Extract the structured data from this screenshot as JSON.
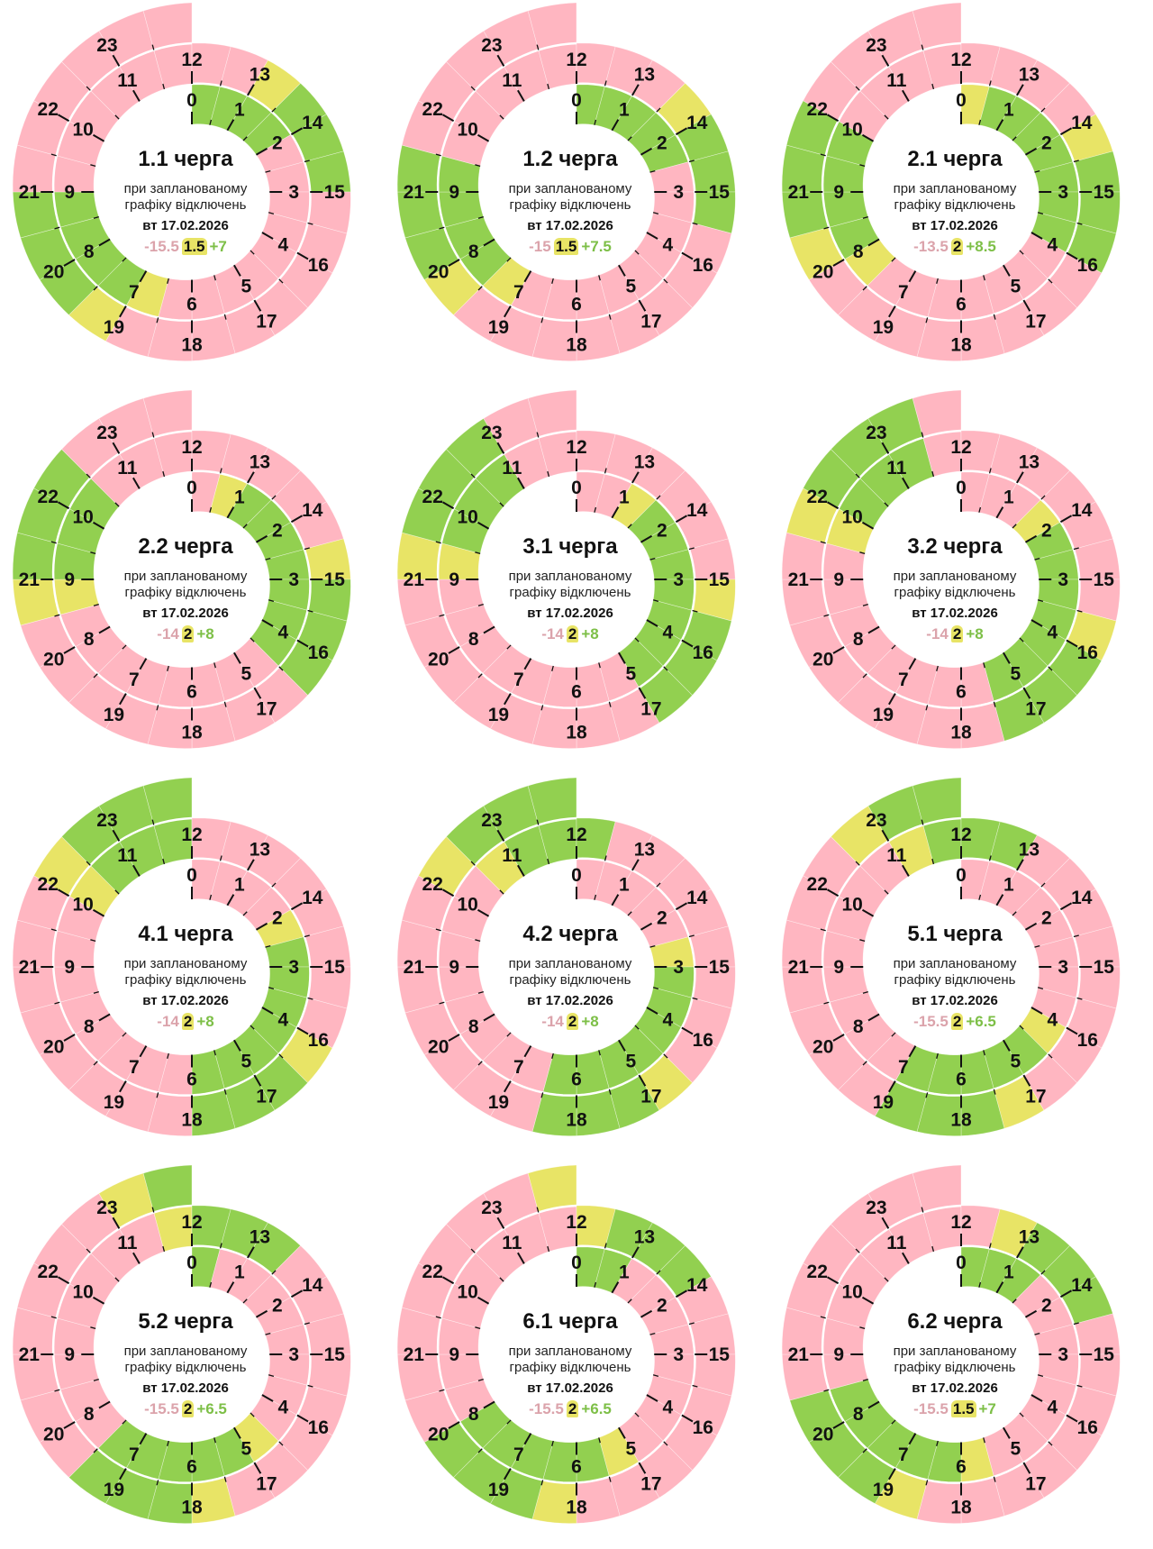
{
  "colors": {
    "p": "#ffb6c1",
    "g": "#92d050",
    "y": "#e8e466",
    "stat_off": "#dba3ab",
    "stat_on": "#7dbf47"
  },
  "hour_labels": [
    "0",
    "1",
    "2",
    "3",
    "4",
    "5",
    "6",
    "7",
    "8",
    "9",
    "10",
    "11",
    "12",
    "13",
    "14",
    "15",
    "16",
    "17",
    "18",
    "19",
    "20",
    "21",
    "22",
    "23"
  ],
  "charts": [
    {
      "title": "1.1 черга",
      "subtitle_1": "при запланованому",
      "subtitle_2": "графіку відключень",
      "date": "вт 17.02.2026",
      "off_hours": "-15.5",
      "maybe_hours": "1.5",
      "on_hours": "+7",
      "schedule": {
        "inner": "ggggpppppppppyggggpppppp",
        "outer": "ppygggppppppppygggpppppp"
      }
    },
    {
      "title": "1.2 черга",
      "subtitle_1": "при запланованому",
      "subtitle_2": "графіку відключень",
      "date": "вт 17.02.2026",
      "off_hours": "-15",
      "maybe_hours": "1.5",
      "on_hours": "+7.5",
      "schedule": {
        "inner": "gggggpppppppppyggggppppp",
        "outer": "pppygggppppppppygggppppp"
      }
    },
    {
      "title": "2.1 черга",
      "subtitle_1": "при запланованому",
      "subtitle_2": "графіку відключень",
      "date": "вт 17.02.2026",
      "off_hours": "-13.5",
      "maybe_hours": "2",
      "on_hours": "+8.5",
      "schedule": {
        "inner": "ygggggggpppppppyggggpppp",
        "outer": "ppppygggppppppppygggpppp"
      }
    },
    {
      "title": "2.2 черга",
      "subtitle_1": "при запланованому",
      "subtitle_2": "графіку відключень",
      "date": "вт 17.02.2026",
      "off_hours": "-14",
      "maybe_hours": "2",
      "on_hours": "+8",
      "schedule": {
        "inner": "pygggggggppppppppygggppp",
        "outer": "pppppygggppppppppygggppp"
      }
    },
    {
      "title": "3.1 черга",
      "subtitle_1": "при запланованому",
      "subtitle_2": "графіку відключень",
      "date": "вт 17.02.2026",
      "off_hours": "-14",
      "maybe_hours": "2",
      "on_hours": "+8",
      "schedule": {
        "inner": "ppygggggggppppppppygggpp",
        "outer": "ppppppygggppppppppygggpp"
      }
    },
    {
      "title": "3.2 черга",
      "subtitle_1": "при запланованому",
      "subtitle_2": "графіку відключень",
      "date": "вт 17.02.2026",
      "off_hours": "-14",
      "maybe_hours": "2",
      "on_hours": "+8",
      "schedule": {
        "inner": "pppygggggggppppppppygggp",
        "outer": "pppppppygggppppppppygggp"
      }
    },
    {
      "title": "4.1 черга",
      "subtitle_1": "при запланованому",
      "subtitle_2": "графіку відключень",
      "date": "вт 17.02.2026",
      "off_hours": "-14",
      "maybe_hours": "2",
      "on_hours": "+8",
      "schedule": {
        "inner": "ppppygggggggppppppppyggg",
        "outer": "ppppppppygggppppppppyggg"
      }
    },
    {
      "title": "4.2 черга",
      "subtitle_1": "при запланованому",
      "subtitle_2": "графіку відключень",
      "date": "вт 17.02.2026",
      "off_hours": "-14",
      "maybe_hours": "2",
      "on_hours": "+8",
      "schedule": {
        "inner": "pppppygggggggppppppppygg",
        "outer": "gppppppppygggpppppppyggg"
      }
    },
    {
      "title": "5.1 черга",
      "subtitle_1": "при запланованому",
      "subtitle_2": "графіку відключень",
      "date": "вт 17.02.2026",
      "off_hours": "-15.5",
      "maybe_hours": "2",
      "on_hours": "+6.5",
      "schedule": {
        "inner": "ppppppppygggggppppppppyg",
        "outer": "ggppppppppygggpppppppygg"
      }
    },
    {
      "title": "5.2 черга",
      "subtitle_1": "при запланованому",
      "subtitle_2": "графіку відключень",
      "date": "вт 17.02.2026",
      "off_hours": "-15.5",
      "maybe_hours": "2",
      "on_hours": "+6.5",
      "schedule": {
        "inner": "gppppppppygggggppppppppy",
        "outer": "gggppppppppygggpppppppyg"
      }
    },
    {
      "title": "6.1 черга",
      "subtitle_1": "при запланованому",
      "subtitle_2": "графіку відключень",
      "date": "вт 17.02.2026",
      "off_hours": "-15.5",
      "maybe_hours": "2",
      "on_hours": "+6.5",
      "schedule": {
        "inner": "ggppppppppygggggpppppppp",
        "outer": "ygggppppppppygggpppppppy"
      }
    },
    {
      "title": "6.2 черга",
      "subtitle_1": "при запланованому",
      "subtitle_2": "графіку відключень",
      "date": "вт 17.02.2026",
      "off_hours": "-15.5",
      "maybe_hours": "1.5",
      "on_hours": "+7",
      "schedule": {
        "inner": "gggppppppppygggggppppppp",
        "outer": "pygggppppppppygggppppppp"
      }
    }
  ]
}
